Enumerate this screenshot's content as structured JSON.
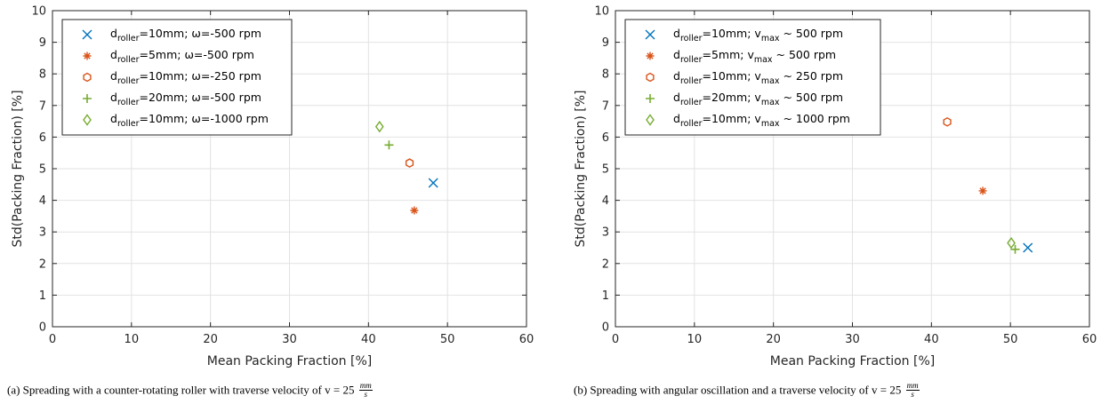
{
  "chart_data": [
    {
      "type": "scatter",
      "xlabel": "Mean Packing Fraction [%]",
      "ylabel": "Std(Packing Fraction) [%]",
      "xlim": [
        0,
        60
      ],
      "ylim": [
        0,
        10
      ],
      "xticks": [
        "0",
        "10",
        "20",
        "30",
        "40",
        "50",
        "60"
      ],
      "yticks": [
        "0",
        "1",
        "2",
        "3",
        "4",
        "5",
        "6",
        "7",
        "8",
        "9",
        "10"
      ],
      "grid": true,
      "legend_position": "top-left",
      "series": [
        {
          "sub": "roller",
          "pre": "d",
          "post": "=10mm; ω=-500 rpm",
          "marker": "x",
          "color": "#0072BD",
          "x": [
            48.2
          ],
          "y": [
            4.55
          ]
        },
        {
          "sub": "roller",
          "pre": "d",
          "post": "=5mm; ω=-500 rpm",
          "marker": "*",
          "color": "#D95319",
          "x": [
            45.8
          ],
          "y": [
            3.68
          ]
        },
        {
          "sub": "roller",
          "pre": "d",
          "post": "=10mm; ω=-250 rpm",
          "marker": "hexagon",
          "color": "#D95319",
          "x": [
            45.2
          ],
          "y": [
            5.18
          ]
        },
        {
          "sub": "roller",
          "pre": "d",
          "post": "=20mm; ω=-500 rpm",
          "marker": "+",
          "color": "#77AC30",
          "x": [
            42.6
          ],
          "y": [
            5.75
          ]
        },
        {
          "sub": "roller",
          "pre": "d",
          "post": "=10mm; ω=-1000 rpm",
          "marker": "diamond",
          "color": "#77AC30",
          "x": [
            41.4
          ],
          "y": [
            6.33
          ]
        }
      ]
    },
    {
      "type": "scatter",
      "xlabel": "Mean Packing Fraction [%]",
      "ylabel": "Std(Packing Fraction) [%]",
      "xlim": [
        0,
        60
      ],
      "ylim": [
        0,
        10
      ],
      "xticks": [
        "0",
        "10",
        "20",
        "30",
        "40",
        "50",
        "60"
      ],
      "yticks": [
        "0",
        "1",
        "2",
        "3",
        "4",
        "5",
        "6",
        "7",
        "8",
        "9",
        "10"
      ],
      "grid": true,
      "legend_position": "top-left",
      "series": [
        {
          "sub": "roller",
          "pre": "d",
          "post": "=10mm; v",
          "sub2": "max",
          "post2": " ~ 500 rpm",
          "marker": "x",
          "color": "#0072BD",
          "x": [
            52.2
          ],
          "y": [
            2.5
          ]
        },
        {
          "sub": "roller",
          "pre": "d",
          "post": "=5mm; v",
          "sub2": "max",
          "post2": " ~ 500 rpm",
          "marker": "*",
          "color": "#D95319",
          "x": [
            46.5
          ],
          "y": [
            4.3
          ]
        },
        {
          "sub": "roller",
          "pre": "d",
          "post": "=10mm; v",
          "sub2": "max",
          "post2": " ~ 250 rpm",
          "marker": "hexagon",
          "color": "#D95319",
          "x": [
            42.0
          ],
          "y": [
            6.48
          ]
        },
        {
          "sub": "roller",
          "pre": "d",
          "post": "=20mm; v",
          "sub2": "max",
          "post2": " ~ 500 rpm",
          "marker": "+",
          "color": "#77AC30",
          "x": [
            50.6
          ],
          "y": [
            2.45
          ]
        },
        {
          "sub": "roller",
          "pre": "d",
          "post": "=10mm; v",
          "sub2": "max",
          "post2": " ~ 1000 rpm",
          "marker": "diamond",
          "color": "#77AC30",
          "x": [
            50.1
          ],
          "y": [
            2.65
          ]
        }
      ]
    }
  ],
  "captions": {
    "a": "(a) Spreading with a counter-rotating roller with traverse velocity of v = 25",
    "b": "(b) Spreading with angular oscillation and a traverse velocity of v = 25",
    "unit_num": "mm",
    "unit_den": "s"
  }
}
